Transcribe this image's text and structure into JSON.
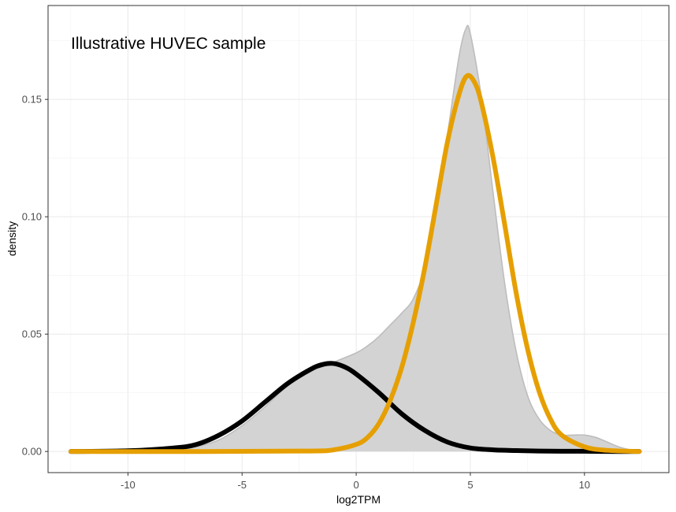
{
  "chart_data": {
    "type": "area",
    "title": "",
    "annotation": "Illustrative HUVEC sample",
    "xlabel": "log2TPM",
    "ylabel": "density",
    "xlim": [
      -13.5,
      13.7
    ],
    "ylim": [
      -0.009,
      0.19
    ],
    "x_ticks": [
      -10,
      -5,
      0,
      5,
      10
    ],
    "x_tick_labels": [
      "-10",
      "-5",
      "0",
      "5",
      "10"
    ],
    "y_ticks": [
      0.0,
      0.05,
      0.1,
      0.15
    ],
    "y_tick_labels": [
      "0.00",
      "0.05",
      "0.10",
      "0.15"
    ],
    "grid": true,
    "legend": "none",
    "series": [
      {
        "style": "filled-density",
        "color": "#d3d3d3",
        "edge_color": "#bdbdbd",
        "x": [
          -12.5,
          -10,
          -8,
          -7,
          -6,
          -5,
          -4,
          -3,
          -2,
          -1,
          0,
          0.5,
          1,
          1.5,
          2,
          2.5,
          3,
          3.5,
          4,
          4.5,
          4.8,
          5,
          5.5,
          6,
          6.5,
          7,
          7.5,
          8,
          8.5,
          9,
          9.5,
          10,
          10.5,
          11,
          11.5,
          12,
          12.4
        ],
        "y": [
          0.0,
          0.0003,
          0.001,
          0.002,
          0.005,
          0.011,
          0.019,
          0.028,
          0.034,
          0.038,
          0.042,
          0.045,
          0.049,
          0.054,
          0.059,
          0.065,
          0.078,
          0.102,
          0.135,
          0.168,
          0.18,
          0.178,
          0.15,
          0.11,
          0.072,
          0.043,
          0.024,
          0.014,
          0.009,
          0.007,
          0.007,
          0.007,
          0.006,
          0.004,
          0.002,
          0.0007,
          0.0002
        ]
      },
      {
        "style": "line",
        "color": "#000000",
        "x": [
          -12.5,
          -10,
          -8,
          -7,
          -6,
          -5,
          -4,
          -3,
          -2,
          -1.5,
          -1,
          -0.5,
          0,
          1,
          2,
          3,
          4,
          5,
          6,
          7,
          8,
          9,
          10,
          11,
          12.4
        ],
        "y": [
          0.0,
          0.0003,
          0.0015,
          0.003,
          0.007,
          0.013,
          0.021,
          0.029,
          0.035,
          0.037,
          0.0375,
          0.036,
          0.033,
          0.025,
          0.016,
          0.009,
          0.004,
          0.0015,
          0.0007,
          0.0004,
          0.0002,
          0.0001,
          0.0001,
          0.0,
          0.0
        ]
      },
      {
        "style": "line",
        "color": "#e69f00",
        "x": [
          -12.5,
          -6,
          -2,
          -1,
          0,
          0.5,
          1,
          1.5,
          2,
          2.5,
          3,
          3.5,
          4,
          4.5,
          4.85,
          5.2,
          5.5,
          6,
          6.5,
          7,
          7.5,
          8,
          8.5,
          9,
          10,
          11,
          12.4
        ],
        "y": [
          0.0,
          0.0,
          0.0002,
          0.0007,
          0.003,
          0.006,
          0.012,
          0.022,
          0.036,
          0.055,
          0.078,
          0.105,
          0.132,
          0.152,
          0.16,
          0.157,
          0.148,
          0.125,
          0.097,
          0.068,
          0.044,
          0.026,
          0.014,
          0.007,
          0.002,
          0.0005,
          0.0
        ]
      }
    ]
  }
}
